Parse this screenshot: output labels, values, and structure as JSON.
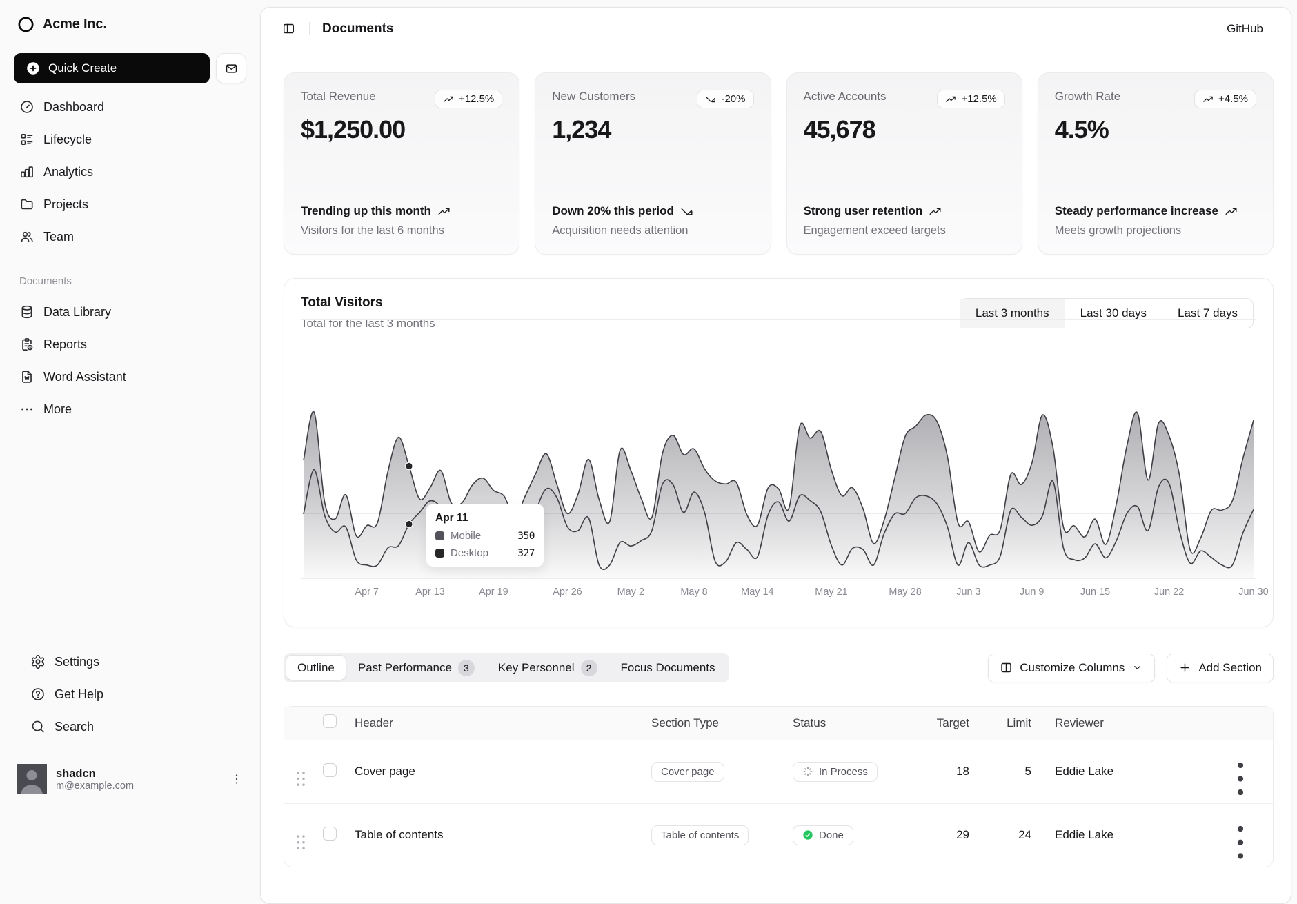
{
  "sidebar": {
    "brand": "Acme Inc.",
    "quick_create_label": "Quick Create",
    "nav_main": [
      {
        "icon": "dashboard",
        "label": "Dashboard"
      },
      {
        "icon": "lifecycle",
        "label": "Lifecycle"
      },
      {
        "icon": "analytics",
        "label": "Analytics"
      },
      {
        "icon": "folder",
        "label": "Projects"
      },
      {
        "icon": "team",
        "label": "Team"
      }
    ],
    "documents_section": {
      "label": "Documents",
      "items": [
        {
          "icon": "database",
          "label": "Data Library"
        },
        {
          "icon": "report",
          "label": "Reports"
        },
        {
          "icon": "word-file",
          "label": "Word Assistant"
        },
        {
          "icon": "ellipsis",
          "label": "More"
        }
      ]
    },
    "nav_footer": [
      {
        "icon": "settings",
        "label": "Settings"
      },
      {
        "icon": "help",
        "label": "Get Help"
      },
      {
        "icon": "search",
        "label": "Search"
      }
    ],
    "user": {
      "name": "shadcn",
      "email": "m@example.com"
    }
  },
  "header": {
    "title": "Documents",
    "github_label": "GitHub"
  },
  "cards": [
    {
      "label": "Total Revenue",
      "badge": "+12.5%",
      "trend": "up",
      "value": "$1,250.00",
      "footer_title": "Trending up this month",
      "footer_note": "Visitors for the last 6 months"
    },
    {
      "label": "New Customers",
      "badge": "-20%",
      "trend": "down",
      "value": "1,234",
      "footer_title": "Down 20% this period",
      "footer_note": "Acquisition needs attention"
    },
    {
      "label": "Active Accounts",
      "badge": "+12.5%",
      "trend": "up",
      "value": "45,678",
      "footer_title": "Strong user retention",
      "footer_note": "Engagement exceed targets"
    },
    {
      "label": "Growth Rate",
      "badge": "+4.5%",
      "trend": "up",
      "value": "4.5%",
      "footer_title": "Steady performance increase",
      "footer_note": "Meets growth projections"
    }
  ],
  "chart": {
    "title": "Total Visitors",
    "subtitle": "Total for the last 3 months",
    "range_tabs": [
      {
        "label": "Last 3 months",
        "active": true
      },
      {
        "label": "Last 30 days",
        "active": false
      },
      {
        "label": "Last 7 days",
        "active": false
      }
    ],
    "chart_data": {
      "type": "area",
      "stacked": true,
      "series": [
        {
          "name": "Mobile",
          "color": "#52525b"
        },
        {
          "name": "Desktop",
          "color": "#27272a"
        }
      ],
      "stroke_color": "#3f3f46",
      "grid": "horizontal",
      "x_range_days": 91,
      "x_ticks": [
        {
          "label": "Apr 7",
          "day": 6
        },
        {
          "label": "Apr 13",
          "day": 12
        },
        {
          "label": "Apr 19",
          "day": 18
        },
        {
          "label": "Apr 26",
          "day": 25
        },
        {
          "label": "May 2",
          "day": 31
        },
        {
          "label": "May 8",
          "day": 37
        },
        {
          "label": "May 14",
          "day": 43
        },
        {
          "label": "May 21",
          "day": 50
        },
        {
          "label": "May 28",
          "day": 57
        },
        {
          "label": "Jun 3",
          "day": 63
        },
        {
          "label": "Jun 9",
          "day": 69
        },
        {
          "label": "Jun 15",
          "day": 75
        },
        {
          "label": "Jun 22",
          "day": 82
        },
        {
          "label": "Jun 30",
          "day": 90
        }
      ],
      "highlighted_day": 10
    },
    "tooltip": {
      "date": "Apr 11",
      "rows": [
        {
          "label": "Mobile",
          "value": "350",
          "color": "#52525b"
        },
        {
          "label": "Desktop",
          "value": "327",
          "color": "#27272a"
        }
      ]
    }
  },
  "toolbar": {
    "tabs": [
      {
        "label": "Outline",
        "active": true
      },
      {
        "label": "Past Performance",
        "count": "3",
        "active": false
      },
      {
        "label": "Key Personnel",
        "count": "2",
        "active": false
      },
      {
        "label": "Focus Documents",
        "active": false
      }
    ],
    "customize_label": "Customize Columns",
    "add_label": "Add Section"
  },
  "table": {
    "columns": [
      "Header",
      "Section Type",
      "Status",
      "Target",
      "Limit",
      "Reviewer"
    ],
    "rows": [
      {
        "header": "Cover page",
        "type": "Cover page",
        "status": {
          "label": "In Process",
          "kind": "in-process"
        },
        "target": "18",
        "limit": "5",
        "reviewer": "Eddie Lake"
      },
      {
        "header": "Table of contents",
        "type": "Table of contents",
        "status": {
          "label": "Done",
          "kind": "done"
        },
        "target": "29",
        "limit": "24",
        "reviewer": "Eddie Lake"
      }
    ]
  },
  "colors": {
    "status_done": "#22c55e",
    "chart_stroke": "#3f3f46"
  }
}
